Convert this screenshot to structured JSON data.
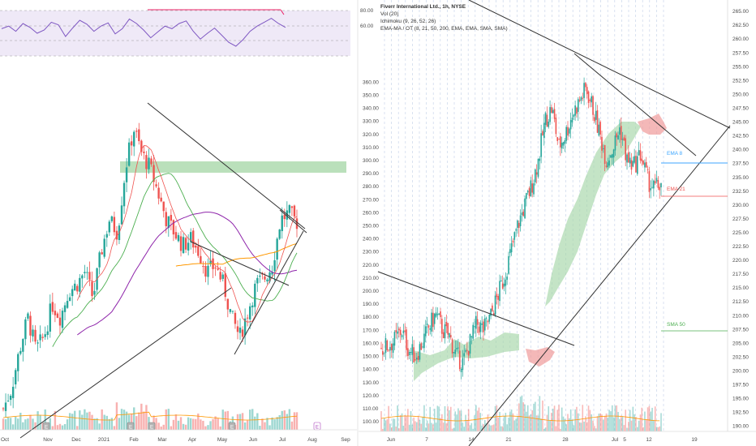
{
  "colors": {
    "up": "#26a69a",
    "down": "#ef5350",
    "rsi": "#7e57c2",
    "rsi_band": "#ede7f6",
    "zone": "#81c784",
    "cloud_green": "#a5d6a7",
    "cloud_red": "#ef9a9a",
    "trend": "#333333",
    "ema8": "#3ca6ff",
    "ema21": "#ff7f7f",
    "sma50": "#4caf50",
    "sma200": "#ff9800",
    "ma_purple": "#8e24aa",
    "rsi_div": "#e91e63",
    "grid_dash": "#c9d6ea"
  },
  "left_chart": {
    "rsi_levels": [
      "80.00",
      "60.00"
    ],
    "x_labels": [
      "Oct",
      "Nov",
      "Dec",
      "2021",
      "Feb",
      "Mar",
      "Apr",
      "May",
      "Jun",
      "Jul",
      "Aug",
      "Sep"
    ],
    "event_markers": [
      "E",
      "E",
      "E",
      "E",
      "E"
    ]
  },
  "right_chart": {
    "title": "Fiverr International Ltd., 1h, NYSE",
    "legend_lines": [
      "Vol (20)",
      "Ichimoku (9, 26, 52, 26)",
      "EMA-MA / OT (8, 21, 50, 200, EMA, EMA, SMA, SMA)"
    ],
    "left_axis_labels": [
      "360.00",
      "350.00",
      "340.00",
      "330.00",
      "320.00",
      "310.00",
      "300.00",
      "290.00",
      "280.00",
      "270.00",
      "260.00",
      "250.00",
      "240.00",
      "230.00",
      "220.00",
      "210.00",
      "200.00",
      "190.00",
      "180.00",
      "170.00",
      "160.00",
      "150.00",
      "140.00",
      "130.00",
      "120.00",
      "110.00",
      "100.00"
    ],
    "right_axis_labels": [
      "265.00",
      "262.50",
      "260.00",
      "257.50",
      "255.00",
      "252.50",
      "250.00",
      "247.50",
      "245.00",
      "242.50",
      "240.00",
      "237.50",
      "235.00",
      "232.50",
      "230.00",
      "227.50",
      "225.00",
      "222.50",
      "220.00",
      "217.50",
      "215.00",
      "212.50",
      "210.00",
      "207.50",
      "205.00",
      "202.50",
      "200.00",
      "197.50",
      "195.00",
      "192.50",
      "190.00"
    ],
    "x_labels": [
      "Jun",
      "7",
      "14",
      "21",
      "28",
      "Jul",
      "5",
      "12",
      "19"
    ],
    "ma_labels": {
      "ema8": "EMA 8",
      "ema21": "EMA 21",
      "sma50": "SMA 50"
    }
  },
  "chart_data": [
    {
      "type": "line",
      "title": "",
      "indicator": "RSI",
      "levels": [
        80,
        60,
        40
      ],
      "series": [
        {
          "values": [
            62,
            66,
            58,
            70,
            64,
            55,
            60,
            72,
            68,
            50,
            63,
            75,
            69,
            58,
            66,
            71,
            54,
            62,
            77,
            70,
            60,
            48,
            57,
            66,
            62,
            70,
            74,
            58,
            46,
            55,
            63,
            52,
            41,
            35,
            45,
            58,
            66,
            72,
            78,
            70,
            64
          ]
        }
      ]
    },
    {
      "type": "candlestick",
      "title": "",
      "x_ticks": [
        "Oct",
        "Nov",
        "Dec",
        "2021",
        "Feb",
        "Mar",
        "Apr",
        "May",
        "Jun",
        "Jul",
        "Aug",
        "Sep"
      ],
      "ylim": [
        95,
        345
      ],
      "close_path": [
        [
          0,
          105
        ],
        [
          10,
          120
        ],
        [
          20,
          150
        ],
        [
          30,
          175
        ],
        [
          40,
          150
        ],
        [
          50,
          160
        ],
        [
          60,
          185
        ],
        [
          70,
          175
        ],
        [
          80,
          195
        ],
        [
          90,
          200
        ],
        [
          100,
          210
        ],
        [
          110,
          190
        ],
        [
          120,
          225
        ],
        [
          130,
          250
        ],
        [
          140,
          240
        ],
        [
          150,
          290
        ],
        [
          160,
          320
        ],
        [
          170,
          300
        ],
        [
          180,
          290
        ],
        [
          190,
          270
        ],
        [
          200,
          250
        ],
        [
          210,
          240
        ],
        [
          220,
          230
        ],
        [
          230,
          235
        ],
        [
          240,
          225
        ],
        [
          250,
          210
        ],
        [
          260,
          215
        ],
        [
          270,
          200
        ],
        [
          280,
          175
        ],
        [
          290,
          160
        ],
        [
          300,
          180
        ],
        [
          310,
          200
        ],
        [
          320,
          205
        ],
        [
          330,
          215
        ],
        [
          340,
          250
        ],
        [
          350,
          255
        ],
        [
          360,
          248
        ]
      ],
      "resistance_zone": [
        281,
        292
      ],
      "series": [
        {
          "name": "EMA",
          "values": []
        },
        {
          "name": "SMA",
          "values": []
        }
      ]
    },
    {
      "type": "candlestick",
      "title": "Fiverr International Ltd., 1h, NYSE",
      "x_ticks": [
        "Jun",
        "7",
        "14",
        "21",
        "28",
        "Jul",
        "5",
        "12",
        "19"
      ],
      "ylim_left": [
        96,
        368
      ],
      "ylim_right": [
        189,
        267
      ],
      "close_path": [
        [
          0,
          156
        ],
        [
          5,
          158
        ],
        [
          10,
          162
        ],
        [
          15,
          170
        ],
        [
          20,
          155
        ],
        [
          25,
          150
        ],
        [
          30,
          160
        ],
        [
          35,
          172
        ],
        [
          40,
          182
        ],
        [
          45,
          170
        ],
        [
          50,
          165
        ],
        [
          55,
          150
        ],
        [
          60,
          145
        ],
        [
          65,
          160
        ],
        [
          70,
          175
        ],
        [
          75,
          170
        ],
        [
          80,
          180
        ],
        [
          85,
          195
        ],
        [
          90,
          210
        ],
        [
          95,
          230
        ],
        [
          100,
          250
        ],
        [
          105,
          265
        ],
        [
          110,
          280
        ],
        [
          115,
          300
        ],
        [
          120,
          330
        ],
        [
          125,
          340
        ],
        [
          130,
          310
        ],
        [
          135,
          320
        ],
        [
          140,
          335
        ],
        [
          145,
          345
        ],
        [
          150,
          355
        ],
        [
          155,
          340
        ],
        [
          160,
          320
        ],
        [
          165,
          300
        ],
        [
          170,
          310
        ],
        [
          175,
          325
        ],
        [
          180,
          300
        ],
        [
          185,
          295
        ],
        [
          190,
          305
        ],
        [
          195,
          285
        ],
        [
          200,
          278
        ],
        [
          205,
          282
        ]
      ],
      "levels": [
        {
          "label": "EMA 8",
          "value": 237.5
        },
        {
          "label": "EMA 21",
          "value": 231.5
        },
        {
          "label": "SMA 50",
          "value": 207.5
        }
      ]
    }
  ]
}
